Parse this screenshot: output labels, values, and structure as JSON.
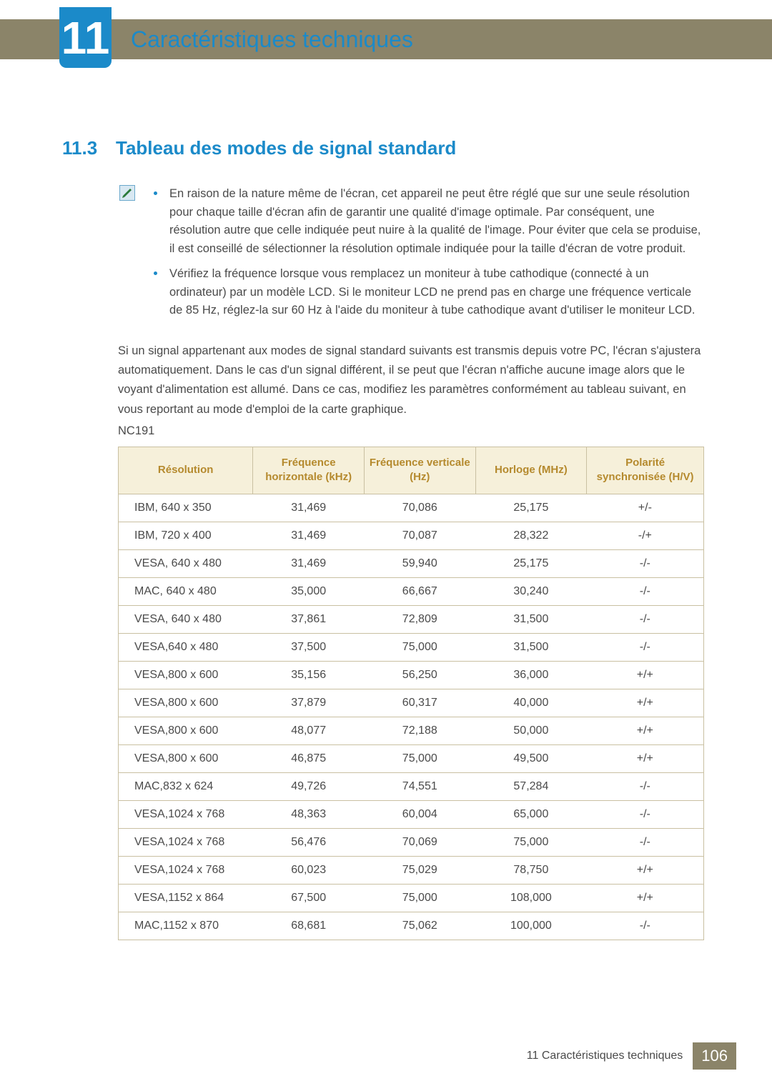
{
  "chapter": {
    "number": "11",
    "title": "Caractéristiques techniques"
  },
  "section": {
    "number": "11.3",
    "title": "Tableau des modes de signal standard"
  },
  "notes": [
    "En raison de la nature même de l'écran, cet appareil ne peut être réglé que sur une seule résolution pour chaque taille d'écran afin de garantir une qualité d'image optimale. Par conséquent, une résolution autre que celle indiquée peut nuire à la qualité de l'image. Pour éviter que cela se produise, il est conseillé de sélectionner la résolution optimale indiquée pour la taille d'écran de votre produit.",
    "Vérifiez la fréquence lorsque vous remplacez un moniteur à tube cathodique (connecté à un ordinateur) par un modèle LCD. Si le moniteur LCD ne prend pas en charge une fréquence verticale de 85 Hz, réglez-la sur 60 Hz à l'aide du moniteur à tube cathodique avant d'utiliser le moniteur LCD."
  ],
  "paragraph": "Si un signal appartenant aux modes de signal standard suivants est transmis depuis votre PC, l'écran s'ajustera automatiquement. Dans le cas d'un signal différent, il se peut que l'écran n'affiche aucune image alors que le voyant d'alimentation est allumé. Dans ce cas, modifiez les paramètres conformément au tableau suivant, en vous reportant au mode d'emploi de la carte graphique.",
  "model": "NC191",
  "table": {
    "headers": [
      "Résolution",
      "Fréquence horizontale (kHz)",
      "Fréquence verticale (Hz)",
      "Horloge (MHz)",
      "Polarité synchronisée (H/V)"
    ],
    "rows": [
      [
        "IBM, 640 x 350",
        "31,469",
        "70,086",
        "25,175",
        "+/-"
      ],
      [
        "IBM, 720 x 400",
        "31,469",
        "70,087",
        "28,322",
        "-/+"
      ],
      [
        "VESA, 640 x 480",
        "31,469",
        "59,940",
        "25,175",
        "-/-"
      ],
      [
        "MAC, 640 x 480",
        "35,000",
        "66,667",
        "30,240",
        "-/-"
      ],
      [
        "VESA, 640 x 480",
        "37,861",
        "72,809",
        "31,500",
        "-/-"
      ],
      [
        "VESA,640 x 480",
        "37,500",
        "75,000",
        "31,500",
        "-/-"
      ],
      [
        "VESA,800 x 600",
        "35,156",
        "56,250",
        "36,000",
        "+/+"
      ],
      [
        "VESA,800 x 600",
        "37,879",
        "60,317",
        "40,000",
        "+/+"
      ],
      [
        "VESA,800 x 600",
        "48,077",
        "72,188",
        "50,000",
        "+/+"
      ],
      [
        "VESA,800 x 600",
        "46,875",
        "75,000",
        "49,500",
        "+/+"
      ],
      [
        "MAC,832 x 624",
        "49,726",
        "74,551",
        "57,284",
        "-/-"
      ],
      [
        "VESA,1024 x 768",
        "48,363",
        "60,004",
        "65,000",
        "-/-"
      ],
      [
        "VESA,1024 x 768",
        "56,476",
        "70,069",
        "75,000",
        "-/-"
      ],
      [
        "VESA,1024 x 768",
        "60,023",
        "75,029",
        "78,750",
        "+/+"
      ],
      [
        "VESA,1152 x 864",
        "67,500",
        "75,000",
        "108,000",
        "+/+"
      ],
      [
        "MAC,1152 x 870",
        "68,681",
        "75,062",
        "100,000",
        "-/-"
      ]
    ],
    "header_bg": "#f6f0da",
    "header_color": "#b58a2e",
    "border_color": "#c9c0a2",
    "cell_color": "#4a4a4a"
  },
  "footer": {
    "text": "11 Caractéristiques techniques",
    "page": "106",
    "bg": "#8b8469"
  },
  "colors": {
    "accent_blue": "#1b8ac9",
    "olive": "#8b8469",
    "body_text": "#4a4a4a"
  }
}
